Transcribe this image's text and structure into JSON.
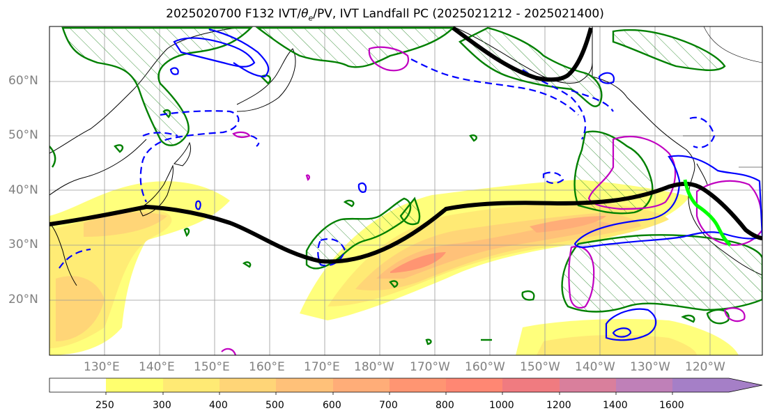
{
  "title": {
    "prefix": "2025020700 F132 IVT/",
    "theta_symbol": "θ",
    "theta_sub": "e",
    "suffix": "/PV, IVT Landfall PC (2025021212 - 2025021400)"
  },
  "lat_labels": [
    "60°N",
    "50°N",
    "40°N",
    "30°N",
    "20°N"
  ],
  "lon_labels": [
    "130°E",
    "140°E",
    "150°E",
    "160°E",
    "170°E",
    "180°W",
    "170°W",
    "160°W",
    "150°W",
    "140°W",
    "130°W",
    "120°W"
  ],
  "colorbar": {
    "levels": [
      "250",
      "300",
      "400",
      "500",
      "600",
      "700",
      "800",
      "1000",
      "1200",
      "1400",
      "1600"
    ],
    "colors": [
      "#ffffff",
      "#ffff6e",
      "#ffea74",
      "#ffd577",
      "#ffc179",
      "#ffad78",
      "#ff9572",
      "#ff8773",
      "#f07b80",
      "#d97f9c",
      "#bf80b8",
      "#a57fc7"
    ],
    "extend": "max"
  },
  "legend_colors": {
    "land_edge": "#000000",
    "pv_contour": "#008000",
    "theta_e_warm": "#c000c0",
    "theta_e_cold": "#0000ff",
    "jet_axis": "#000000",
    "landfall_segment": "#00ff00"
  }
}
